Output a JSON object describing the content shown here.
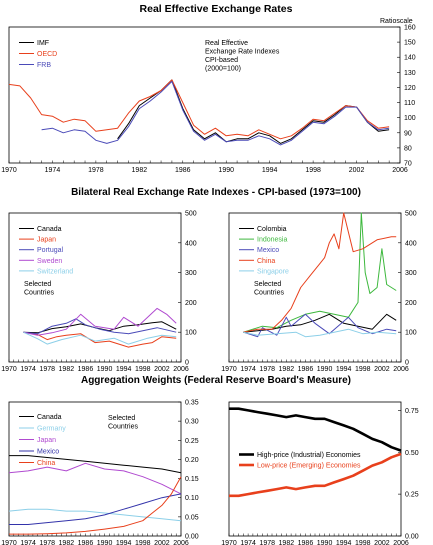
{
  "colors": {
    "black": "#000000",
    "red": "#e8401c",
    "blue": "#4a4ab8",
    "purple": "#b04ad0",
    "pink": "#e060b0",
    "lightblue": "#8ccfe8",
    "green": "#3db83d",
    "darkblue": "#3333aa"
  },
  "chart_data": [
    {
      "id": "reer",
      "type": "line",
      "title": "Real Effective Exchange Rates",
      "ylabel": "Ratioscale",
      "annotation": [
        "Real Effective",
        "Exchange Rate Indexes",
        "CPI-based",
        "(2000=100)"
      ],
      "xlim": [
        1970,
        2006
      ],
      "ylim": [
        70,
        160
      ],
      "xticks": [
        1970,
        1974,
        1978,
        1982,
        1986,
        1990,
        1994,
        1998,
        2002,
        2006
      ],
      "yticks": [
        70,
        80,
        90,
        100,
        110,
        120,
        130,
        140,
        150,
        160
      ],
      "legend_position": "top-left",
      "series": [
        {
          "name": "IMF",
          "color": "#000000",
          "x": [
            1980,
            1981,
            1982,
            1983,
            1984,
            1985,
            1986,
            1987,
            1988,
            1989,
            1990,
            1991,
            1992,
            1993,
            1994,
            1995,
            1996,
            1997,
            1998,
            1999,
            2000,
            2001,
            2002,
            2003,
            2004,
            2005
          ],
          "y": [
            86,
            96,
            108,
            113,
            118,
            125,
            106,
            92,
            86,
            90,
            84,
            86,
            86,
            90,
            88,
            83,
            86,
            92,
            98,
            97,
            102,
            108,
            107,
            97,
            91,
            92
          ]
        },
        {
          "name": "OECD",
          "color": "#e8401c",
          "x": [
            1970,
            1971,
            1972,
            1973,
            1974,
            1975,
            1976,
            1977,
            1978,
            1979,
            1980,
            1981,
            1982,
            1983,
            1984,
            1985,
            1986,
            1987,
            1988,
            1989,
            1990,
            1991,
            1992,
            1993,
            1994,
            1995,
            1996,
            1997,
            1998,
            1999,
            2000,
            2001,
            2002,
            2003,
            2004,
            2005
          ],
          "y": [
            122,
            121,
            113,
            102,
            101,
            97,
            99,
            98,
            91,
            92,
            93,
            103,
            111,
            114,
            118,
            125,
            110,
            95,
            89,
            93,
            88,
            89,
            88,
            92,
            89,
            86,
            88,
            93,
            99,
            98,
            103,
            108,
            107,
            98,
            93,
            94
          ]
        },
        {
          "name": "FRB",
          "color": "#4a4ab8",
          "x": [
            1973,
            1974,
            1975,
            1976,
            1977,
            1978,
            1979,
            1980,
            1981,
            1982,
            1983,
            1984,
            1985,
            1986,
            1987,
            1988,
            1989,
            1990,
            1991,
            1992,
            1993,
            1994,
            1995,
            1996,
            1997,
            1998,
            1999,
            2000,
            2001,
            2002,
            2003,
            2004,
            2005
          ],
          "y": [
            92,
            93,
            90,
            92,
            91,
            85,
            83,
            85,
            94,
            106,
            111,
            117,
            124,
            105,
            91,
            85,
            89,
            84,
            85,
            85,
            88,
            86,
            82,
            85,
            91,
            97,
            96,
            101,
            107,
            107,
            97,
            92,
            93
          ]
        }
      ]
    },
    {
      "id": "bil1",
      "type": "line",
      "title": "Bilateral Real Exchange Rate Indexes - CPI-based (1973=100)",
      "note": [
        "Selected",
        "Countries"
      ],
      "xlim": [
        1970,
        2006
      ],
      "ylim": [
        0,
        500
      ],
      "xticks": [
        1970,
        1974,
        1978,
        1982,
        1986,
        1990,
        1994,
        1998,
        2002,
        2006
      ],
      "yticks": [
        0,
        100,
        200,
        300,
        400,
        500
      ],
      "legend_position": "top-left",
      "series": [
        {
          "name": "Canada",
          "color": "#000000",
          "x": [
            1973,
            1976,
            1979,
            1982,
            1985,
            1988,
            1991,
            1994,
            1997,
            2000,
            2002,
            2005
          ],
          "y": [
            100,
            98,
            112,
            118,
            128,
            115,
            105,
            120,
            125,
            132,
            135,
            110
          ]
        },
        {
          "name": "Japan",
          "color": "#e8401c",
          "x": [
            1973,
            1976,
            1978,
            1980,
            1982,
            1985,
            1988,
            1991,
            1994,
            1995,
            1998,
            2000,
            2002,
            2005
          ],
          "y": [
            100,
            92,
            75,
            85,
            90,
            95,
            65,
            70,
            55,
            50,
            60,
            65,
            85,
            80
          ]
        },
        {
          "name": "Portugal",
          "color": "#4a4ab8",
          "x": [
            1973,
            1976,
            1979,
            1982,
            1984,
            1986,
            1989,
            1992,
            1995,
            1998,
            2001,
            2005
          ],
          "y": [
            100,
            95,
            120,
            130,
            145,
            125,
            110,
            100,
            95,
            105,
            115,
            100
          ]
        },
        {
          "name": "Sweden",
          "color": "#b04ad0",
          "x": [
            1973,
            1976,
            1979,
            1982,
            1985,
            1988,
            1992,
            1994,
            1997,
            2001,
            2003,
            2005
          ],
          "y": [
            100,
            90,
            98,
            110,
            160,
            120,
            110,
            150,
            120,
            180,
            160,
            130
          ]
        },
        {
          "name": "Switzerland",
          "color": "#8ccfe8",
          "x": [
            1973,
            1976,
            1978,
            1981,
            1985,
            1988,
            1992,
            1995,
            1999,
            2002,
            2005
          ],
          "y": [
            100,
            78,
            60,
            75,
            90,
            70,
            80,
            60,
            80,
            90,
            85
          ]
        }
      ]
    },
    {
      "id": "bil2",
      "type": "line",
      "note": [
        "Selected",
        "Countries"
      ],
      "xlim": [
        1970,
        2006
      ],
      "ylim": [
        0,
        500
      ],
      "xticks": [
        1970,
        1974,
        1978,
        1982,
        1986,
        1990,
        1994,
        1998,
        2002,
        2006
      ],
      "yticks": [
        0,
        100,
        200,
        300,
        400,
        500
      ],
      "legend_position": "top-left",
      "series": [
        {
          "name": "Colombia",
          "color": "#000000",
          "x": [
            1973,
            1976,
            1979,
            1982,
            1985,
            1988,
            1991,
            1994,
            1997,
            2000,
            2003,
            2005
          ],
          "y": [
            100,
            105,
            110,
            120,
            125,
            140,
            160,
            130,
            120,
            110,
            160,
            140
          ]
        },
        {
          "name": "Indonesia",
          "color": "#3db83d",
          "x": [
            1973,
            1977,
            1980,
            1983,
            1986,
            1989,
            1992,
            1995,
            1997,
            1997.7,
            1998.5,
            1999.5,
            2001,
            2002,
            2003,
            2005
          ],
          "y": [
            100,
            120,
            115,
            140,
            160,
            170,
            160,
            150,
            200,
            500,
            300,
            230,
            250,
            380,
            260,
            240
          ]
        },
        {
          "name": "Mexico",
          "color": "#4a4ab8",
          "x": [
            1973,
            1976,
            1977,
            1980,
            1982,
            1983,
            1986,
            1988,
            1991,
            1995,
            1997,
            2000,
            2003,
            2005
          ],
          "y": [
            100,
            85,
            115,
            90,
            150,
            120,
            160,
            130,
            95,
            150,
            115,
            95,
            110,
            105
          ]
        },
        {
          "name": "China",
          "color": "#e8401c",
          "x": [
            1973,
            1976,
            1979,
            1981,
            1983,
            1985,
            1987,
            1989,
            1990,
            1991,
            1992,
            1993,
            1994,
            1996,
            1998,
            2001,
            2004,
            2005
          ],
          "y": [
            100,
            110,
            110,
            140,
            180,
            250,
            290,
            330,
            350,
            400,
            430,
            380,
            500,
            370,
            380,
            410,
            420,
            420
          ]
        },
        {
          "name": "Singapore",
          "color": "#8ccfe8",
          "x": [
            1973,
            1976,
            1980,
            1984,
            1986,
            1989,
            1992,
            1995,
            1998,
            2001,
            2005
          ],
          "y": [
            100,
            90,
            95,
            100,
            85,
            90,
            100,
            110,
            95,
            100,
            95
          ]
        }
      ]
    },
    {
      "id": "wgt1",
      "type": "line",
      "title": "Aggregation Weights (Federal Reserve Board's Measure)",
      "note": [
        "Selected",
        "Countries"
      ],
      "xlim": [
        1970,
        2006
      ],
      "ylim": [
        0,
        0.35
      ],
      "xticks": [
        1970,
        1974,
        1978,
        1982,
        1986,
        1990,
        1994,
        1998,
        2002,
        2006
      ],
      "ytick_labels": [
        "0.00",
        "0.05",
        "0.10",
        "0.15",
        "0.20",
        "0.25",
        "0.30",
        "0.35"
      ],
      "legend_position": "top-left",
      "series": [
        {
          "name": "Canada",
          "color": "#000000",
          "x": [
            1970,
            1974,
            1978,
            1982,
            1986,
            1990,
            1994,
            1998,
            2002,
            2006
          ],
          "y": [
            0.21,
            0.21,
            0.205,
            0.2,
            0.195,
            0.19,
            0.185,
            0.18,
            0.175,
            0.165
          ]
        },
        {
          "name": "Germany",
          "color": "#8ccfe8",
          "x": [
            1970,
            1974,
            1978,
            1982,
            1986,
            1990,
            1994,
            1998,
            2002,
            2006
          ],
          "y": [
            0.065,
            0.07,
            0.07,
            0.065,
            0.065,
            0.06,
            0.055,
            0.05,
            0.045,
            0.04
          ]
        },
        {
          "name": "Japan",
          "color": "#b04ad0",
          "x": [
            1970,
            1974,
            1978,
            1982,
            1986,
            1990,
            1994,
            1998,
            2002,
            2006
          ],
          "y": [
            0.165,
            0.17,
            0.18,
            0.17,
            0.19,
            0.175,
            0.17,
            0.155,
            0.135,
            0.11
          ]
        },
        {
          "name": "Mexico",
          "color": "#3333aa",
          "x": [
            1970,
            1974,
            1978,
            1982,
            1986,
            1990,
            1994,
            1998,
            2002,
            2006
          ],
          "y": [
            0.03,
            0.03,
            0.035,
            0.04,
            0.045,
            0.055,
            0.07,
            0.085,
            0.1,
            0.11
          ]
        },
        {
          "name": "China",
          "color": "#e8401c",
          "x": [
            1970,
            1974,
            1978,
            1982,
            1986,
            1990,
            1994,
            1998,
            2000,
            2002,
            2004,
            2006
          ],
          "y": [
            0.005,
            0.005,
            0.006,
            0.008,
            0.012,
            0.018,
            0.025,
            0.04,
            0.06,
            0.08,
            0.11,
            0.155
          ]
        }
      ]
    },
    {
      "id": "wgt2",
      "type": "line",
      "xlim": [
        1970,
        2006
      ],
      "ylim": [
        0,
        0.8
      ],
      "xticks": [
        1970,
        1974,
        1978,
        1982,
        1986,
        1990,
        1994,
        1998,
        2002,
        2006
      ],
      "ytick_values": [
        0,
        0.25,
        0.5,
        0.75
      ],
      "ytick_labels": [
        "0.00",
        "0.25",
        "0.50",
        "0.75"
      ],
      "legend_position": "center-right",
      "series": [
        {
          "name": "High-price (Industrial) Economies",
          "color": "#000000",
          "x": [
            1970,
            1972,
            1974,
            1976,
            1978,
            1980,
            1982,
            1984,
            1986,
            1988,
            1990,
            1992,
            1994,
            1996,
            1998,
            2000,
            2002,
            2004,
            2006
          ],
          "y": [
            0.76,
            0.76,
            0.75,
            0.74,
            0.73,
            0.72,
            0.71,
            0.72,
            0.71,
            0.7,
            0.7,
            0.68,
            0.66,
            0.64,
            0.61,
            0.58,
            0.56,
            0.53,
            0.51
          ]
        },
        {
          "name": "Low-price (Emerging) Economies",
          "color": "#e8401c",
          "x": [
            1970,
            1972,
            1974,
            1976,
            1978,
            1980,
            1982,
            1984,
            1986,
            1988,
            1990,
            1992,
            1994,
            1996,
            1998,
            2000,
            2002,
            2004,
            2006
          ],
          "y": [
            0.24,
            0.24,
            0.25,
            0.26,
            0.27,
            0.28,
            0.29,
            0.28,
            0.29,
            0.3,
            0.3,
            0.32,
            0.34,
            0.36,
            0.39,
            0.42,
            0.44,
            0.47,
            0.49
          ]
        }
      ]
    }
  ]
}
